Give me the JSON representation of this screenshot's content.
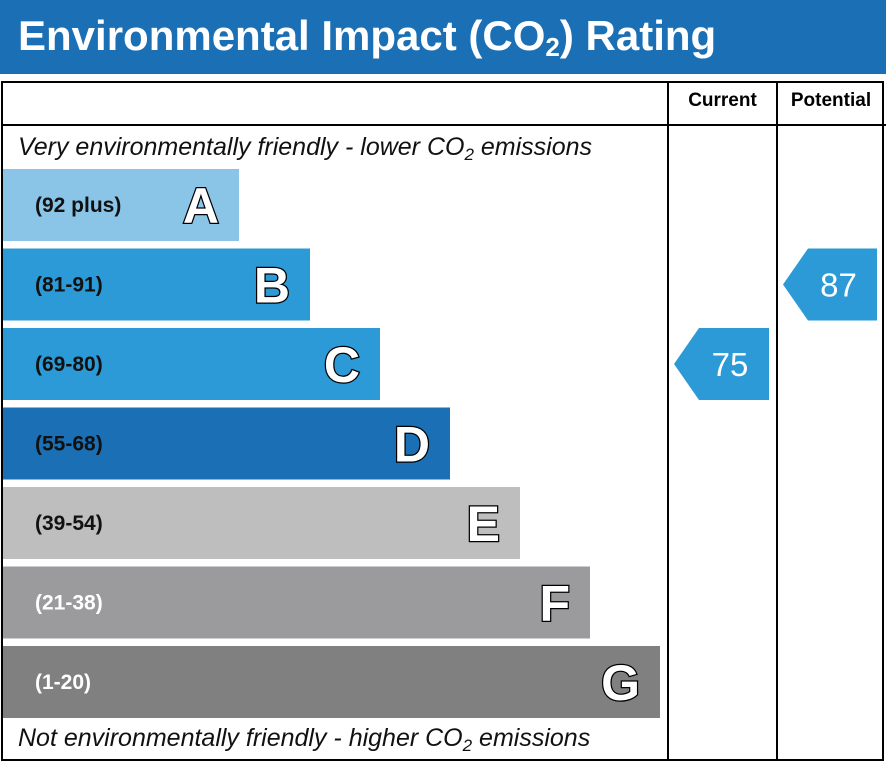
{
  "header": {
    "title_pre": "Environmental Impact (CO",
    "title_sub": "2",
    "title_post": ") Rating"
  },
  "columns": {
    "current": "Current",
    "potential": "Potential"
  },
  "captions": {
    "top_pre": "Very environmentally friendly - lower CO",
    "top_sub": "2",
    "top_post": " emissions",
    "bottom_pre": "Not environmentally friendly - higher CO",
    "bottom_sub": "2",
    "bottom_post": " emissions"
  },
  "chart_data": {
    "type": "bar",
    "categories": [
      "A",
      "B",
      "C",
      "D",
      "E",
      "F",
      "G"
    ],
    "ranges": [
      "(92 plus)",
      "(81-91)",
      "(69-80)",
      "(55-68)",
      "(39-54)",
      "(21-38)",
      "(1-20)"
    ],
    "colors": [
      "#8ac5e8",
      "#2b9ad6",
      "#2b9ad6",
      "#1a6fb5",
      "#bebebe",
      "#9b9b9d",
      "#808080"
    ],
    "range_text_colors": [
      "#111111",
      "#111111",
      "#111111",
      "#111111",
      "#111111",
      "#ffffff",
      "#ffffff"
    ],
    "current": {
      "value": 75,
      "band": "C",
      "color": "#2b9ad6"
    },
    "potential": {
      "value": 87,
      "band": "B",
      "color": "#2b9ad6"
    }
  }
}
